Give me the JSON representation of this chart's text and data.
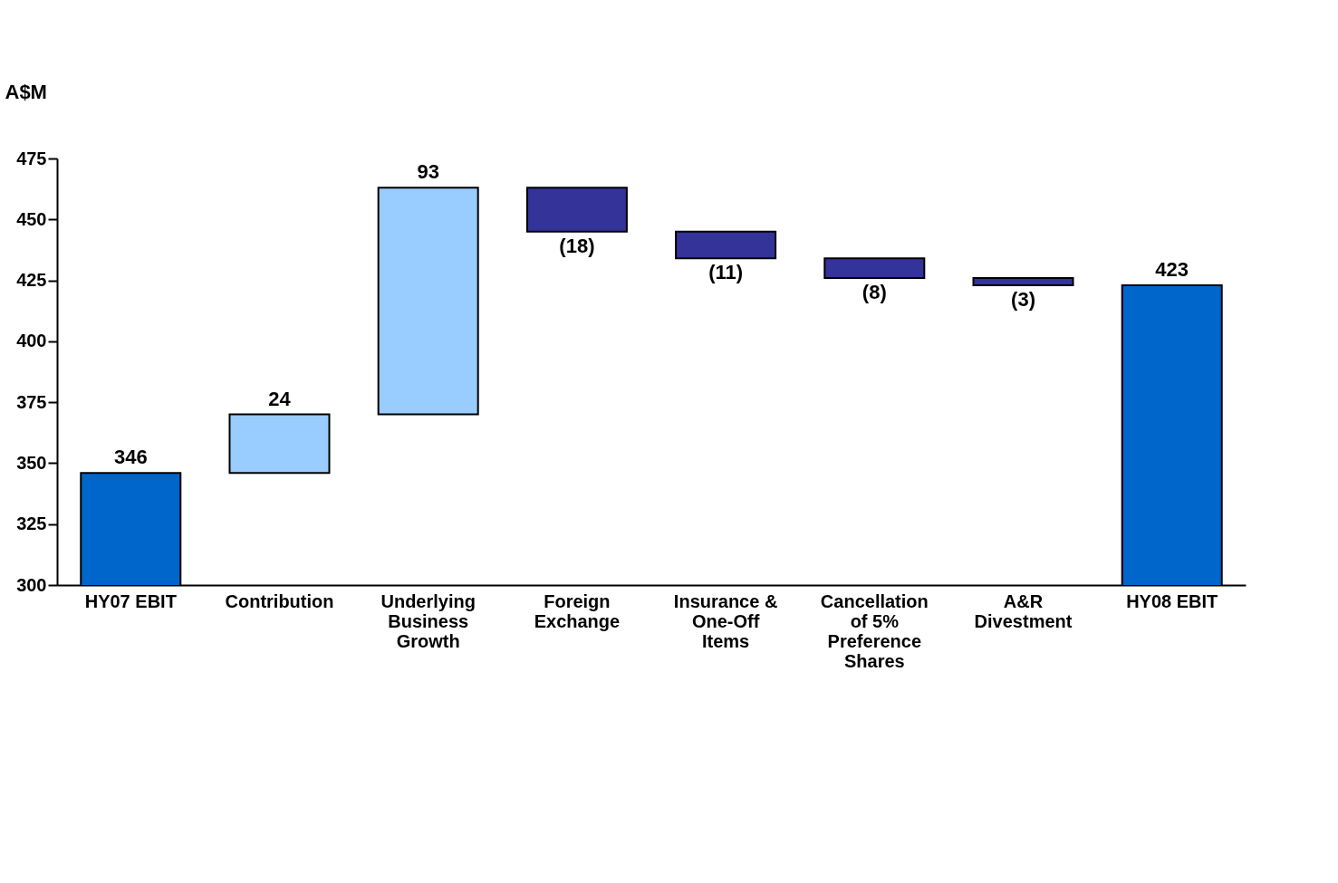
{
  "chart_data": {
    "type": "bar",
    "ylabel": "A$M",
    "categories": [
      "HY07 EBIT",
      "Contribution",
      "Underlying Business Growth",
      "Foreign Exchange",
      "Insurance & One-Off Items",
      "Cancellation of 5% Preference Shares",
      "A&R Divestment",
      "HY08 EBIT"
    ],
    "values": [
      346,
      24,
      93,
      -18,
      -11,
      -8,
      -3,
      423
    ],
    "base": [
      null,
      346,
      370,
      463,
      445,
      434,
      426,
      null
    ],
    "colors": [
      "#0066cc",
      "#99ccff",
      "#99ccff",
      "#333399",
      "#333399",
      "#333399",
      "#333399",
      "#0066cc"
    ],
    "value_labels": [
      "346",
      "24",
      "93",
      "(18)",
      "(11)",
      "(8)",
      "(3)",
      "423"
    ],
    "ylim": [
      300,
      475
    ],
    "yticks": [
      300,
      325,
      350,
      375,
      400,
      425,
      450,
      475
    ],
    "grid": false
  }
}
